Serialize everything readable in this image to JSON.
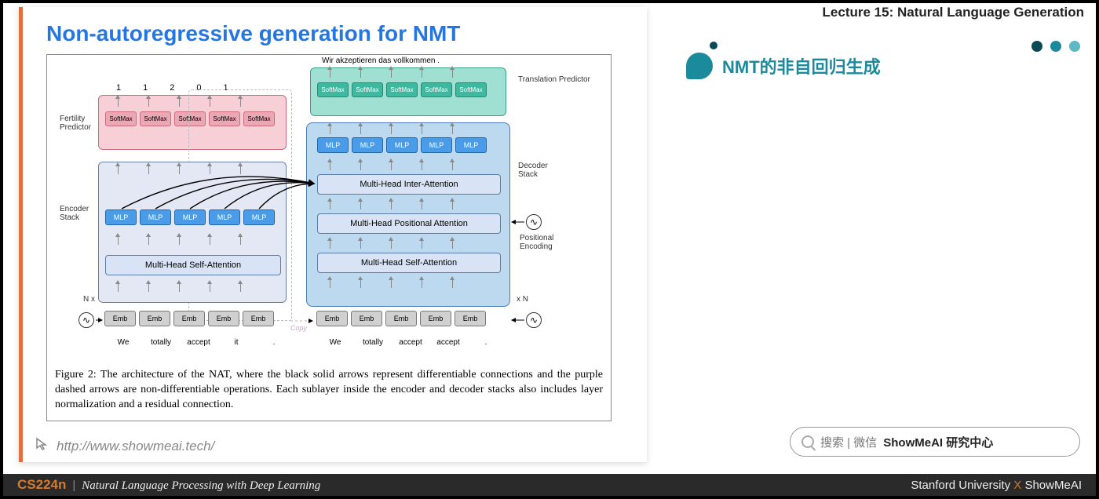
{
  "lecture_header": "Lecture 15: Natural Language Generation",
  "slide": {
    "title": "Non-autoregressive generation for NMT",
    "caption": "Figure 2:   The architecture of the NAT, where the black solid arrows represent differentiable connections and the purple dashed arrows are non-differentiable operations.  Each sublayer inside the encoder and decoder stacks also includes layer normalization and a residual connection.",
    "url": "http://www.showmeai.tech/"
  },
  "right_panel": {
    "title": "NMT的非自回归生成",
    "dots": [
      "#0a4a56",
      "#1a8a9c",
      "#5fb8c4"
    ]
  },
  "search": {
    "prefix": "搜索 | 微信",
    "strong": "ShowMeAI 研究中心"
  },
  "footer": {
    "course": "CS224n",
    "subtitle": "Natural Language Processing with Deep Learning",
    "right_a": "Stanford University",
    "right_x": "X",
    "right_b": "ShowMeAI"
  },
  "diagram": {
    "labels": {
      "fertility_predictor": "Fertility Predictor",
      "encoder_stack": "Encoder Stack",
      "translation_predictor": "Translation Predictor",
      "decoder_stack": "Decoder Stack",
      "positional_encoding": "Positional Encoding",
      "nx_left": "N x",
      "nx_right": "x N",
      "copy": "Copy"
    },
    "output_text": "Wir  akzeptieren  das  vollkommen   .",
    "fertility_nums": [
      "1",
      "1",
      "2",
      "0",
      "1"
    ],
    "softmax": "SoftMax",
    "mlp": "MLP",
    "emb": "Emb",
    "self_attn": "Multi-Head Self-Attention",
    "inter_attn": "Multi-Head Inter-Attention",
    "pos_attn": "Multi-Head Positional Attention",
    "enc_words": [
      "We",
      "totally",
      "accept",
      "it",
      "."
    ],
    "dec_words": [
      "We",
      "totally",
      "accept",
      "accept",
      "."
    ],
    "colors": {
      "encoder_bg": "#e4e8f5",
      "fertility_bg": "#f7cfd6",
      "decoder_bg": "#bcd9f0",
      "translation_bg": "#9fe0d2",
      "mlp_bg": "#4a9ce8",
      "softmax_pink_bg": "#eaa7b4",
      "softmax_teal_bg": "#3fb8a0",
      "emb_bg": "#d0d0d0",
      "widebox_bg": "#d8e4f5"
    }
  }
}
